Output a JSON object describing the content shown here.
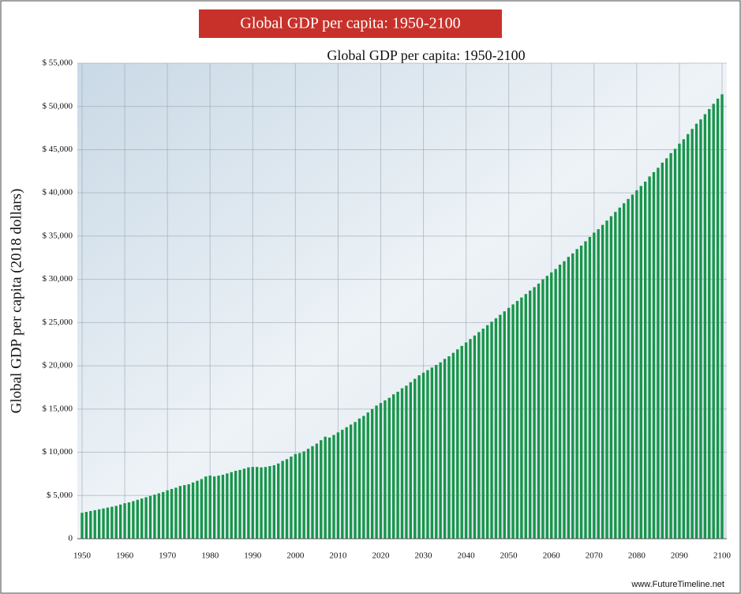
{
  "chart_data": {
    "type": "bar",
    "banner": "Global GDP per capita: 1950-2100",
    "title": "Global GDP per capita: 1950-2100",
    "y_label": "Global GDP per capita (2018 dollars)",
    "source": "www.FutureTimeline.net",
    "color": "#16954a",
    "banner_color": "#c8312a",
    "grid": true,
    "x": [
      1950,
      1951,
      1952,
      1953,
      1954,
      1955,
      1956,
      1957,
      1958,
      1959,
      1960,
      1961,
      1962,
      1963,
      1964,
      1965,
      1966,
      1967,
      1968,
      1969,
      1970,
      1971,
      1972,
      1973,
      1974,
      1975,
      1976,
      1977,
      1978,
      1979,
      1980,
      1981,
      1982,
      1983,
      1984,
      1985,
      1986,
      1987,
      1988,
      1989,
      1990,
      1991,
      1992,
      1993,
      1994,
      1995,
      1996,
      1997,
      1998,
      1999,
      2000,
      2001,
      2002,
      2003,
      2004,
      2005,
      2006,
      2007,
      2008,
      2009,
      2010,
      2011,
      2012,
      2013,
      2014,
      2015,
      2016,
      2017,
      2018,
      2019,
      2020,
      2021,
      2022,
      2023,
      2024,
      2025,
      2026,
      2027,
      2028,
      2029,
      2030,
      2031,
      2032,
      2033,
      2034,
      2035,
      2036,
      2037,
      2038,
      2039,
      2040,
      2041,
      2042,
      2043,
      2044,
      2045,
      2046,
      2047,
      2048,
      2049,
      2050,
      2051,
      2052,
      2053,
      2054,
      2055,
      2056,
      2057,
      2058,
      2059,
      2060,
      2061,
      2062,
      2063,
      2064,
      2065,
      2066,
      2067,
      2068,
      2069,
      2070,
      2071,
      2072,
      2073,
      2074,
      2075,
      2076,
      2077,
      2078,
      2079,
      2080,
      2081,
      2082,
      2083,
      2084,
      2085,
      2086,
      2087,
      2088,
      2089,
      2090,
      2091,
      2092,
      2093,
      2094,
      2095,
      2096,
      2097,
      2098,
      2099,
      2100
    ],
    "values": [
      3000,
      3100,
      3200,
      3300,
      3400,
      3500,
      3600,
      3700,
      3800,
      3950,
      4100,
      4200,
      4350,
      4500,
      4650,
      4800,
      4950,
      5100,
      5250,
      5400,
      5600,
      5750,
      5900,
      6100,
      6200,
      6300,
      6500,
      6700,
      6900,
      7200,
      7300,
      7200,
      7300,
      7400,
      7550,
      7700,
      7850,
      7950,
      8100,
      8250,
      8300,
      8300,
      8250,
      8300,
      8400,
      8500,
      8700,
      9000,
      9200,
      9500,
      9800,
      9900,
      10100,
      10400,
      10700,
      11000,
      11400,
      11800,
      11700,
      12000,
      12300,
      12600,
      12900,
      13200,
      13500,
      13900,
      14200,
      14600,
      15000,
      15400,
      15700,
      16000,
      16300,
      16700,
      17000,
      17400,
      17700,
      18100,
      18500,
      18900,
      19200,
      19500,
      19800,
      20100,
      20400,
      20800,
      21100,
      21500,
      21900,
      22300,
      22700,
      23100,
      23500,
      23900,
      24300,
      24700,
      25100,
      25500,
      25900,
      26300,
      26700,
      27100,
      27500,
      27900,
      28300,
      28700,
      29100,
      29500,
      30000,
      30400,
      30800,
      31200,
      31700,
      32100,
      32600,
      33000,
      33500,
      33900,
      34400,
      34900,
      35400,
      35800,
      36300,
      36800,
      37300,
      37800,
      38300,
      38800,
      39300,
      39800,
      40300,
      40800,
      41300,
      41900,
      42400,
      42900,
      43500,
      44000,
      44600,
      45100,
      45700,
      46200,
      46800,
      47400,
      48000,
      48500,
      49100,
      49700,
      50300,
      50900,
      51400
    ],
    "xlim": [
      1950,
      2100
    ],
    "xticks": [
      1950,
      1960,
      1970,
      1980,
      1990,
      2000,
      2010,
      2020,
      2030,
      2040,
      2050,
      2060,
      2070,
      2080,
      2090,
      2100
    ],
    "ylim": [
      0,
      55000
    ],
    "yticks": [
      0,
      {
        "value": 5000,
        "label": "$ 5,000"
      },
      {
        "value": 10000,
        "label": "$ 10,000"
      },
      {
        "value": 15000,
        "label": "$ 15,000"
      },
      {
        "value": 20000,
        "label": "$ 20,000"
      },
      {
        "value": 25000,
        "label": "$ 25,000"
      },
      {
        "value": 30000,
        "label": "$ 30,000"
      },
      {
        "value": 35000,
        "label": "$ 35,000"
      },
      {
        "value": 40000,
        "label": "$ 40,000"
      },
      {
        "value": 45000,
        "label": "$ 45,000"
      },
      {
        "value": 50000,
        "label": "$ 50,000"
      },
      {
        "value": 55000,
        "label": "$ 55,000"
      }
    ]
  }
}
